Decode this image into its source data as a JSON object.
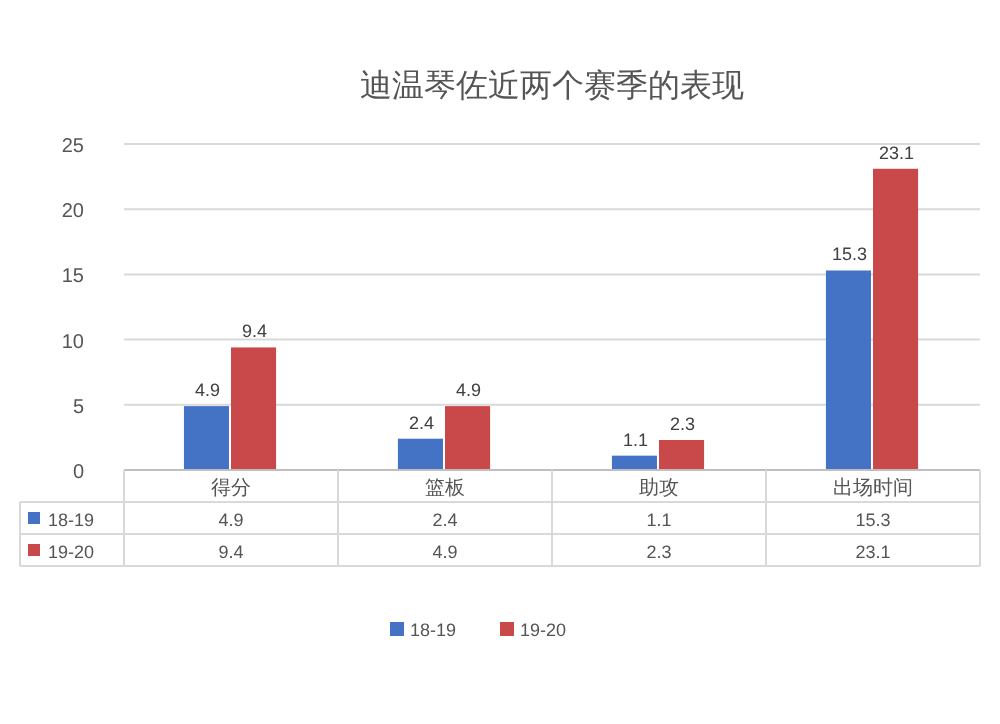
{
  "chart_data": {
    "type": "bar",
    "title": "迪温琴佐近两个赛季的表现",
    "categories": [
      "得分",
      "篮板",
      "助攻",
      "出场时间"
    ],
    "series": [
      {
        "name": "18-19",
        "color": "#4472c4",
        "values": [
          4.9,
          2.4,
          1.1,
          15.3
        ]
      },
      {
        "name": "19-20",
        "color": "#c9494a",
        "values": [
          9.4,
          4.9,
          2.3,
          23.1
        ]
      }
    ],
    "annotations": [
      {
        "text": "4.9",
        "x": "得分",
        "y": 4.9
      },
      {
        "text": "9.4",
        "x": "得分",
        "y": 9.4
      },
      {
        "text": "2.4",
        "x": "篮板",
        "y": 2.4
      },
      {
        "text": "4.9",
        "x": "篮板",
        "y": 4.9
      },
      {
        "text": "1.1",
        "x": "助攻",
        "y": 1.1
      },
      {
        "text": "2.3",
        "x": "助攻",
        "y": 2.3
      },
      {
        "text": "15.3",
        "x": "出场时间",
        "y": 15.3
      },
      {
        "text": "23.1",
        "x": "出场时间",
        "y": 23.1
      }
    ],
    "ylim": [
      0,
      25
    ],
    "yticks": [
      0,
      5,
      10,
      15,
      20,
      25
    ],
    "grid": "y",
    "legend": "bottom",
    "data_labels": true
  }
}
